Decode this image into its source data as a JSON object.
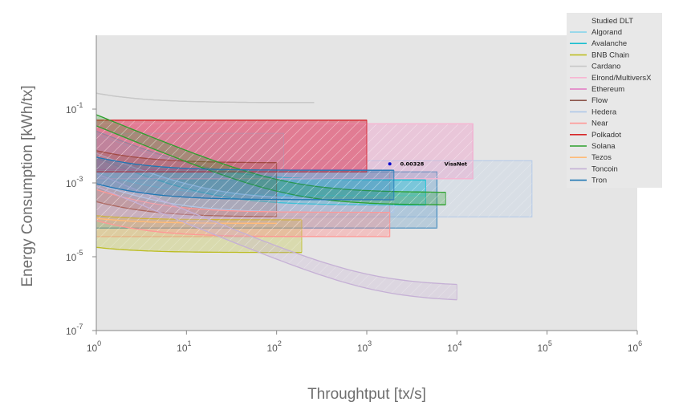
{
  "chart_data": {
    "type": "area",
    "xlabel": "Throughtput [tx/s]",
    "ylabel": "Energy Consumption [kWh/tx]",
    "xscale": "log",
    "yscale": "log",
    "xlim": [
      1,
      1000000
    ],
    "ylim": [
      1e-07,
      10
    ],
    "x_ticks": [
      {
        "value": 1,
        "base": "10",
        "exp": "0"
      },
      {
        "value": 10,
        "base": "10",
        "exp": "1"
      },
      {
        "value": 100,
        "base": "10",
        "exp": "2"
      },
      {
        "value": 1000,
        "base": "10",
        "exp": "3"
      },
      {
        "value": 10000,
        "base": "10",
        "exp": "4"
      },
      {
        "value": 100000,
        "base": "10",
        "exp": "5"
      },
      {
        "value": 1000000,
        "base": "10",
        "exp": "6"
      }
    ],
    "y_ticks": [
      {
        "value": 1e-07,
        "base": "10",
        "exp": "-7"
      },
      {
        "value": 1e-05,
        "base": "10",
        "exp": "-5"
      },
      {
        "value": 0.001,
        "base": "10",
        "exp": "-3"
      },
      {
        "value": 0.1,
        "base": "10",
        "exp": "-1"
      }
    ],
    "grid": false,
    "background": "#e5e5e5",
    "legend_position": "top-right",
    "legend_title": "Studied DLT",
    "series": [
      {
        "name": "Algorand",
        "color": "#7fd3ea",
        "x_max": 4500,
        "upper": {
          "a": 0.0012,
          "b": 0.02
        },
        "lower": {
          "a": 0.00045,
          "b": 0.0015
        }
      },
      {
        "name": "Avalanche",
        "color": "#17becf",
        "x_max": 4500,
        "upper": {
          "a": 0.0012,
          "b": 0.024
        },
        "lower": {
          "a": 0.00025,
          "b": 0.0045
        }
      },
      {
        "name": "BNB Chain",
        "color": "#bcbd22",
        "x_max": 190,
        "upper": {
          "a": 0.0001,
          "b": 3e-05
        },
        "lower": {
          "a": 1.3e-05,
          "b": 5e-06
        }
      },
      {
        "name": "Cardano",
        "color": "#c7c7c7",
        "x_max": 260,
        "upper": {
          "a": 0.15,
          "b": 0.12
        },
        "lower": {
          "a": 0.15,
          "b": 0.12
        }
      },
      {
        "name": "Elrond/MultiversX",
        "color": "#f7b6d2",
        "x_max": 15000,
        "upper": {
          "a": 0.04,
          "b": 0
        },
        "lower": {
          "a": 0.0013,
          "b": 0
        }
      },
      {
        "name": "Ethereum",
        "color": "#e377c2",
        "x_max": 1000,
        "upper": {
          "a": 0.05,
          "b": 0
        },
        "lower": {
          "a": 0.0023,
          "b": 0
        }
      },
      {
        "name": "Flow",
        "color": "#8c564b",
        "x_max": 100,
        "upper": {
          "a": 0.0035,
          "b": 0.004
        },
        "lower": {
          "a": 0.00012,
          "b": 0.00019
        }
      },
      {
        "name": "Hedera",
        "color": "#aec7e8",
        "x_max": 2000,
        "upper": {
          "a": 0.00035,
          "b": 0.006
        },
        "lower": {
          "a": 0.00016,
          "b": 0.0008
        }
      },
      {
        "name": "Near",
        "color": "#ff9896",
        "x_max": 1800,
        "upper": {
          "a": 0.00016,
          "b": 0.0005
        },
        "lower": {
          "a": 3.5e-05,
          "b": 6e-05
        }
      },
      {
        "name": "Polkadot",
        "color": "#d62728",
        "x_max": 1000,
        "upper": {
          "a": 0.05,
          "b": 0
        },
        "lower": {
          "a": 0.002,
          "b": 0
        }
      },
      {
        "name": "Solana",
        "color": "#2ca02c",
        "x_max": 7500,
        "upper": {
          "a": 0.00055,
          "b": 0.07
        },
        "lower": {
          "a": 0.00025,
          "b": 0.035
        }
      },
      {
        "name": "Tezos",
        "color": "#ffbb78",
        "x_max": 100,
        "upper": {
          "a": 8e-05,
          "b": 3e-05
        },
        "lower": {
          "a": 8e-05,
          "b": 3e-05
        }
      },
      {
        "name": "Toncoin",
        "color": "#c5b0d5",
        "x_max": 10000,
        "upper": {
          "a": 1.6e-06,
          "b": 0.0018
        },
        "lower": {
          "a": 6e-07,
          "b": 0.0008
        }
      },
      {
        "name": "Tron",
        "color": "#1f77b4",
        "x_max": 2000,
        "upper": {
          "a": 0.0022,
          "b": 0.0028
        },
        "lower": {
          "a": 0.00035,
          "b": 0.0006
        }
      }
    ],
    "boxes": [
      {
        "series": "Ethereum",
        "x": [
          1,
          15000
        ],
        "y": [
          0.0013,
          0.04
        ],
        "color": "#e377c2"
      },
      {
        "series": "Hedera",
        "x": [
          1,
          68000
        ],
        "y": [
          0.00012,
          0.004
        ],
        "color": "#aec7e8"
      },
      {
        "series": "Polkadot",
        "x": [
          1,
          1000
        ],
        "y": [
          0.002,
          0.05
        ],
        "color": "#d62728"
      },
      {
        "series": "Algorand",
        "x": [
          1,
          120
        ],
        "y": [
          0.0012,
          0.022
        ],
        "color": "#7fd3ea"
      },
      {
        "series": "Near",
        "x": [
          1,
          1800
        ],
        "y": [
          3.5e-05,
          0.002
        ],
        "color": "#ff9896"
      },
      {
        "series": "Tron",
        "x": [
          1,
          6000
        ],
        "y": [
          6e-05,
          0.002
        ],
        "color": "#1f77b4"
      }
    ],
    "annotation": {
      "point": {
        "x": 1800,
        "y": 0.00328
      },
      "value_label": "0.00328",
      "label": "VisaNet",
      "color": "#0000cc"
    }
  }
}
